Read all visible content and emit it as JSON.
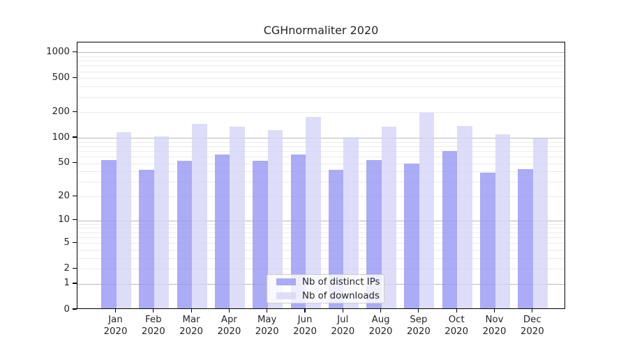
{
  "chart_data": {
    "type": "bar",
    "title": "CGHnormaliter 2020",
    "categories": [
      {
        "month": "Jan",
        "year": "2020"
      },
      {
        "month": "Feb",
        "year": "2020"
      },
      {
        "month": "Mar",
        "year": "2020"
      },
      {
        "month": "Apr",
        "year": "2020"
      },
      {
        "month": "May",
        "year": "2020"
      },
      {
        "month": "Jun",
        "year": "2020"
      },
      {
        "month": "Jul",
        "year": "2020"
      },
      {
        "month": "Aug",
        "year": "2020"
      },
      {
        "month": "Sep",
        "year": "2020"
      },
      {
        "month": "Oct",
        "year": "2020"
      },
      {
        "month": "Nov",
        "year": "2020"
      },
      {
        "month": "Dec",
        "year": "2020"
      }
    ],
    "series": [
      {
        "name": "Nb of distinct IPs",
        "color": "rgba(150,150,244,0.8)",
        "values": [
          53,
          40,
          52,
          61,
          52,
          61,
          40,
          53,
          48,
          67,
          37,
          41
        ]
      },
      {
        "name": "Nb of downloads",
        "color": "rgba(212,212,248,0.8)",
        "values": [
          112,
          100,
          141,
          130,
          118,
          170,
          98,
          130,
          191,
          134,
          105,
          94
        ]
      }
    ],
    "y_axis": {
      "scale": "log1p",
      "tick_labels": [
        "0",
        "1",
        "2",
        "5",
        "10",
        "20",
        "50",
        "100",
        "200",
        "500",
        "1000"
      ],
      "tick_values": [
        0,
        1,
        2,
        5,
        10,
        20,
        50,
        100,
        200,
        500,
        1000
      ],
      "major_grid_values": [
        1,
        10,
        100,
        1000
      ]
    },
    "legend_position": "inside-bottom-center",
    "grid": true,
    "colors": {
      "major_grid": "#b9b9b9",
      "minor_grid": "#ebebeb",
      "axis": "#000000",
      "text": "#262626"
    }
  }
}
